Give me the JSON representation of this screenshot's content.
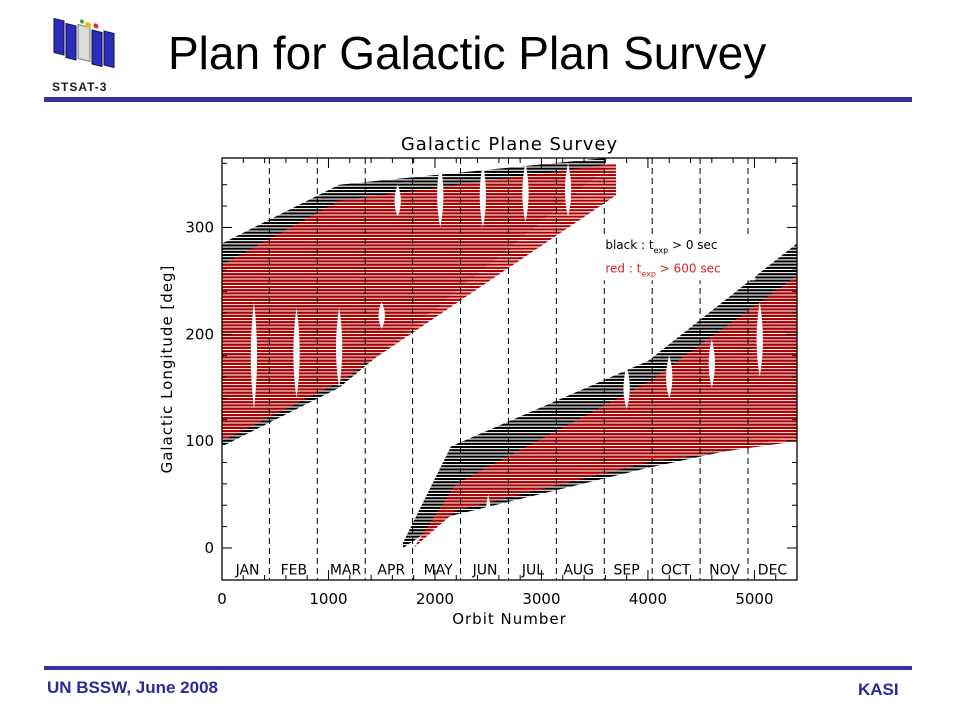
{
  "header": {
    "title": "Plan for Galactic Plan Survey",
    "logo_caption": "STSAT-3",
    "logo_icon": "satellite-icon"
  },
  "footer": {
    "left": "UN BSSW, June 2008",
    "right": "KASI"
  },
  "colors": {
    "accent": "#3333a0",
    "footer_text": "#2a2a9a",
    "band_red": "#b00000",
    "band_black": "#000000",
    "legend_red": "#e02020"
  },
  "chart_data": {
    "type": "line",
    "title": "Galactic Plane Survey",
    "xlabel": "Orbit Number",
    "ylabel": "Galactic Longitude [deg]",
    "xlim": [
      0,
      5400
    ],
    "ylim": [
      -30,
      365
    ],
    "xticks": [
      0,
      1000,
      2000,
      3000,
      4000,
      5000
    ],
    "yticks": [
      0,
      100,
      200,
      300
    ],
    "month_dividers": [
      445,
      895,
      1345,
      1790,
      2240,
      2690,
      3140,
      3590,
      4040,
      4490,
      4940
    ],
    "months": [
      {
        "label": "JAN",
        "x": 240
      },
      {
        "label": "FEB",
        "x": 675
      },
      {
        "label": "MAR",
        "x": 1160
      },
      {
        "label": "APR",
        "x": 1590
      },
      {
        "label": "MAY",
        "x": 2030
      },
      {
        "label": "JUN",
        "x": 2470
      },
      {
        "label": "JUL",
        "x": 2920
      },
      {
        "label": "AUG",
        "x": 3350
      },
      {
        "label": "SEP",
        "x": 3800
      },
      {
        "label": "OCT",
        "x": 4260
      },
      {
        "label": "NOV",
        "x": 4720
      },
      {
        "label": "DEC",
        "x": 5170
      }
    ],
    "legend": {
      "black_label": "black : t",
      "black_sub": "exp",
      "black_cond": "> 0 sec",
      "red_label": "red : t",
      "red_sub": "exp",
      "red_cond": "> 600 sec",
      "placement": "right"
    },
    "series": [
      {
        "name": "black",
        "color": "#000000",
        "bands": [
          {
            "x": [
              0,
              1100,
              3600
            ],
            "y_low": [
              95,
              150,
              355
            ],
            "y_high": [
              285,
              340,
              365
            ]
          },
          {
            "x": [
              1700,
              2150,
              4000,
              5400
            ],
            "y_low": [
              0,
              30,
              75,
              105
            ],
            "y_high": [
              5,
              95,
              175,
              285
            ]
          }
        ]
      },
      {
        "name": "red",
        "color": "#b00000",
        "bands": [
          {
            "x": [
              0,
              1100,
              3700
            ],
            "y_low": [
              100,
              155,
              330
            ],
            "y_high": [
              265,
              325,
              360
            ]
          },
          {
            "x": [
              1800,
              2200,
              4000,
              5400
            ],
            "y_low": [
              0,
              35,
              80,
              100
            ],
            "y_high": [
              0,
              60,
              155,
              255
            ]
          }
        ]
      }
    ]
  }
}
